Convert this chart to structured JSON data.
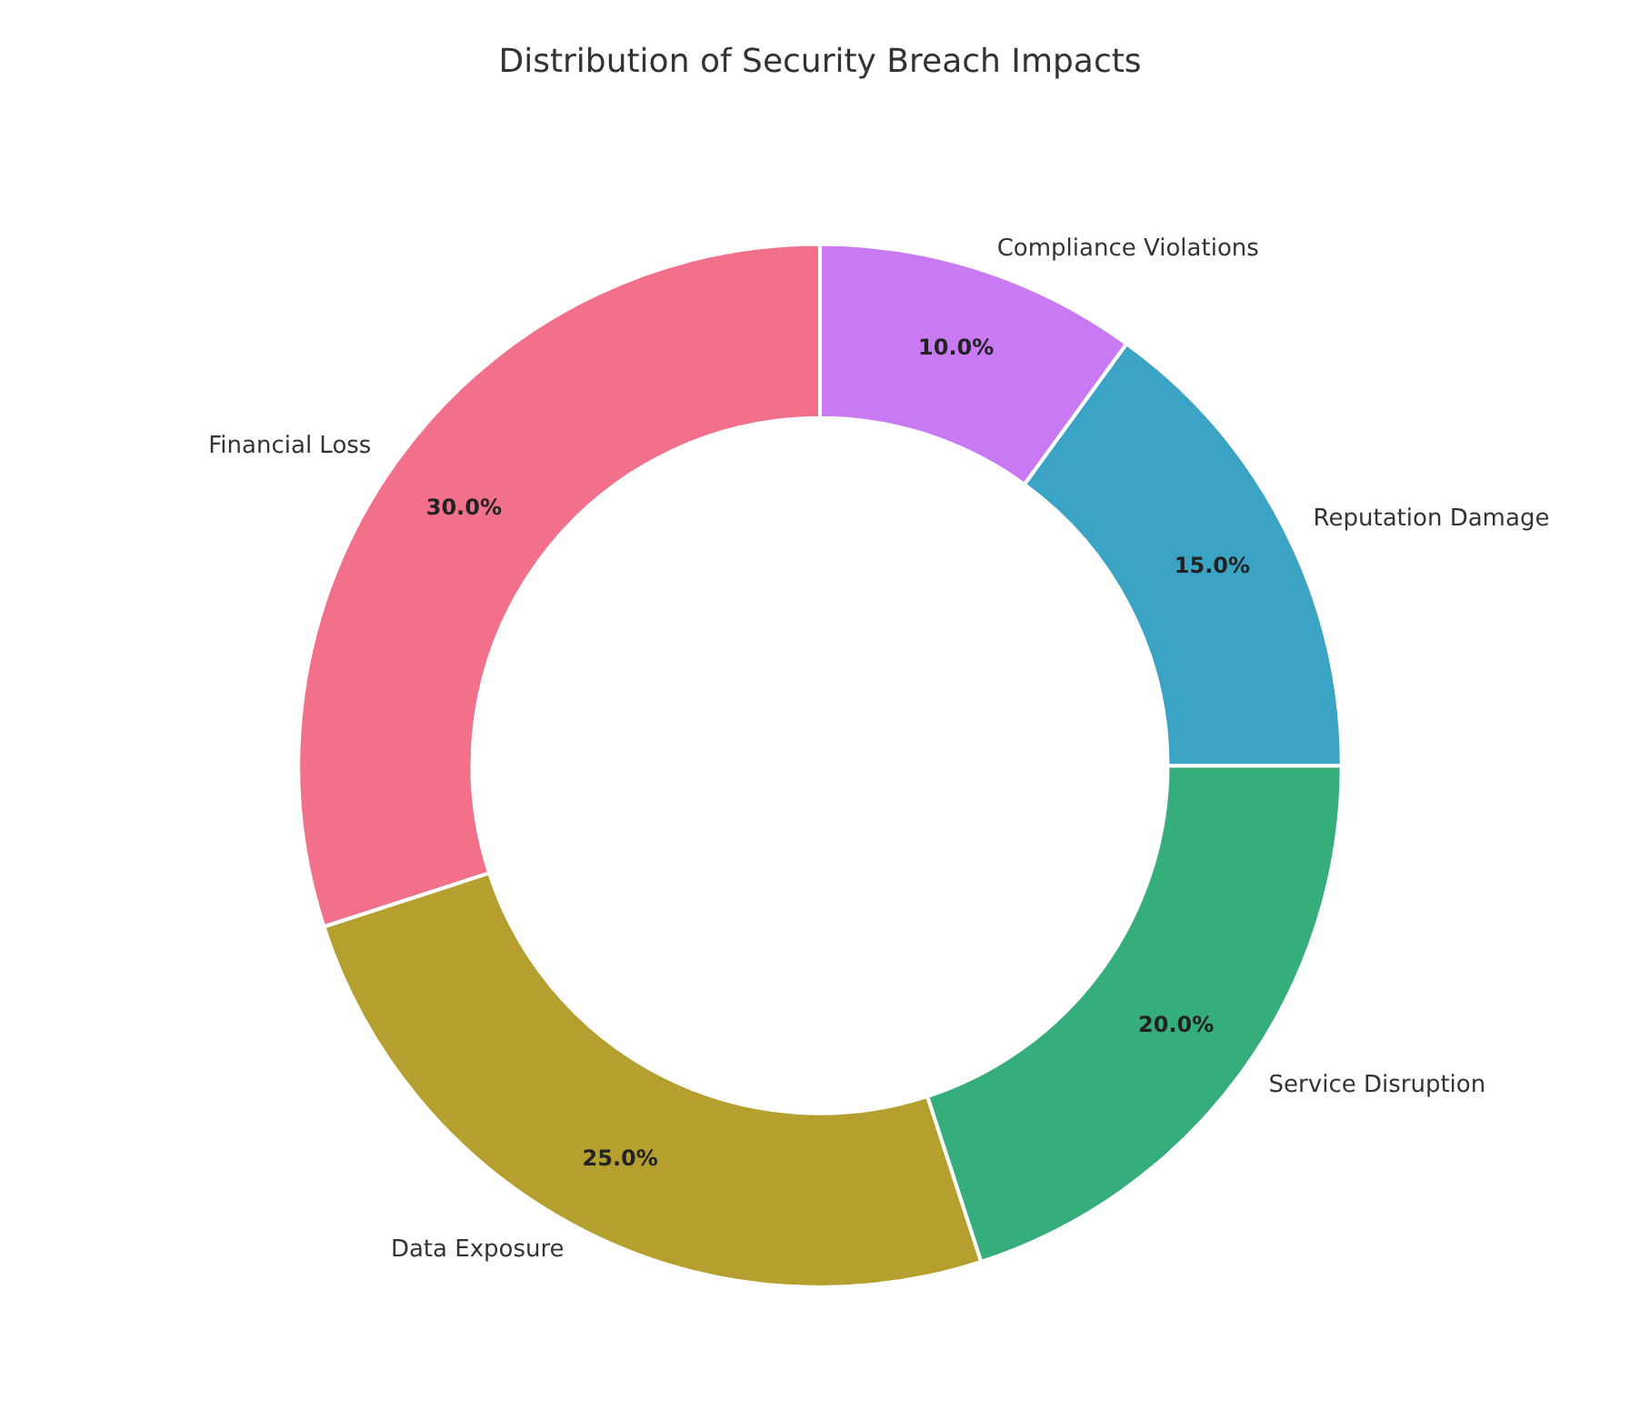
{
  "chart_data": {
    "type": "donut",
    "title": "Distribution of Security Breach Impacts",
    "categories": [
      "Financial Loss",
      "Data Exposure",
      "Service Disruption",
      "Reputation Damage",
      "Compliance Violations"
    ],
    "values": [
      30,
      25,
      20,
      15,
      10
    ],
    "value_labels": [
      "30.0%",
      "25.0%",
      "20.0%",
      "15.0%",
      "10.0%"
    ],
    "colors": [
      "#f3708a",
      "#b59f2e",
      "#35ae7c",
      "#3ba3c4",
      "#c97af2"
    ],
    "legend": false
  }
}
